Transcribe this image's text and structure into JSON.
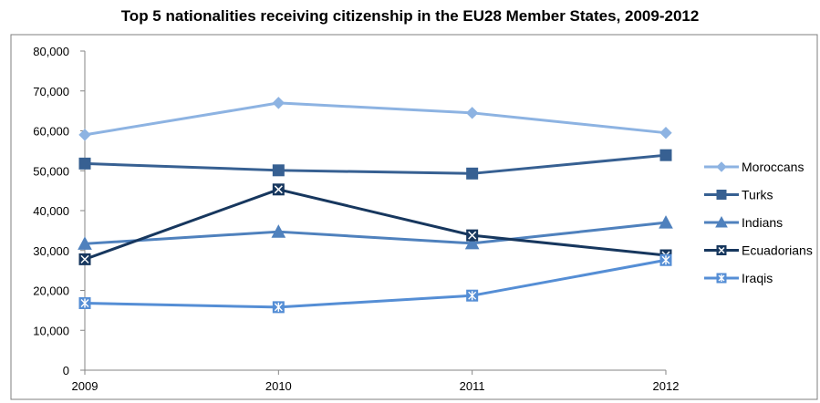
{
  "chart_data": {
    "type": "line",
    "title": "Top 5 nationalities receiving citizenship in the EU28 Member States, 2009-2012",
    "xlabel": "",
    "ylabel": "",
    "x": [
      "2009",
      "2010",
      "2011",
      "2012"
    ],
    "ylim": [
      0,
      80000
    ],
    "yticks": [
      "0",
      "10,000",
      "20,000",
      "30,000",
      "40,000",
      "50,000",
      "60,000",
      "70,000",
      "80,000"
    ],
    "grid": false,
    "legend_position": "right",
    "series": [
      {
        "name": "Moroccans",
        "values": [
          59000,
          67000,
          64500,
          59500
        ],
        "color": "#8db3e2",
        "marker": "diamond"
      },
      {
        "name": "Turks",
        "values": [
          51800,
          50100,
          49300,
          53900
        ],
        "color": "#376092",
        "marker": "square"
      },
      {
        "name": "Indians",
        "values": [
          31700,
          34700,
          31800,
          37000
        ],
        "color": "#4f81bd",
        "marker": "triangle"
      },
      {
        "name": "Ecuadorians",
        "values": [
          27800,
          45300,
          33800,
          28800
        ],
        "color": "#17375e",
        "marker": "x-square"
      },
      {
        "name": "Iraqis",
        "values": [
          16800,
          15800,
          18700,
          27600
        ],
        "color": "#558ed5",
        "marker": "star-square"
      }
    ]
  }
}
